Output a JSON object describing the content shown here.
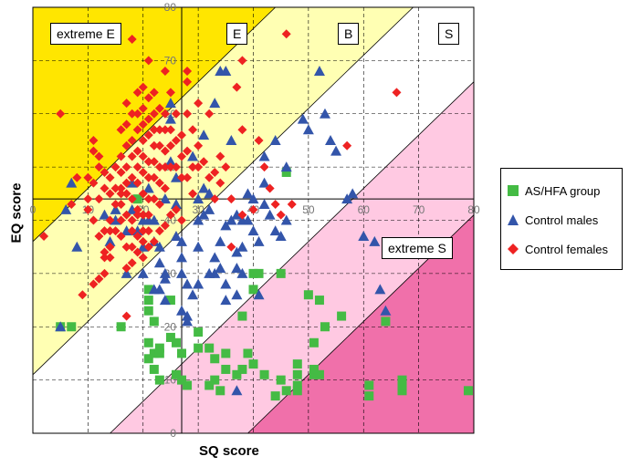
{
  "chart_data": {
    "type": "scatter",
    "xlabel": "SQ score",
    "ylabel": "EQ score",
    "xlim": [
      0,
      80
    ],
    "ylim": [
      0,
      80
    ],
    "x_ticks": [
      "0",
      "10",
      "20",
      "30",
      "40",
      "50",
      "60",
      "70",
      "80"
    ],
    "y_ticks": [
      "0",
      "10",
      "20",
      "30",
      "40",
      "50",
      "60",
      "70",
      "80"
    ],
    "grid": true,
    "legend_position": "right",
    "regions": [
      {
        "label": "extreme E",
        "color": "#ffe600"
      },
      {
        "label": "E",
        "color": "#ffffb3"
      },
      {
        "label": "B",
        "color": "#ffffff"
      },
      {
        "label": "S",
        "color": "#ffc9e2"
      },
      {
        "label": "extreme S",
        "color": "#f070aa"
      }
    ],
    "series": [
      {
        "name": "AS/HFA group",
        "marker": "square",
        "color": "#44bb44",
        "points": [
          [
            5,
            20
          ],
          [
            7,
            20
          ],
          [
            16,
            20
          ],
          [
            19,
            44
          ],
          [
            21,
            27
          ],
          [
            21,
            25
          ],
          [
            21,
            23
          ],
          [
            22,
            21
          ],
          [
            21,
            17
          ],
          [
            22,
            15
          ],
          [
            23,
            16
          ],
          [
            21,
            14
          ],
          [
            22,
            12
          ],
          [
            23,
            10
          ],
          [
            23,
            15
          ],
          [
            25,
            25
          ],
          [
            25,
            18
          ],
          [
            26,
            17
          ],
          [
            26,
            11
          ],
          [
            27,
            10
          ],
          [
            28,
            9
          ],
          [
            27,
            15
          ],
          [
            30,
            19
          ],
          [
            30,
            16
          ],
          [
            32,
            16
          ],
          [
            33,
            14
          ],
          [
            35,
            15
          ],
          [
            35,
            12
          ],
          [
            33,
            10
          ],
          [
            32,
            9
          ],
          [
            34,
            8
          ],
          [
            37,
            11
          ],
          [
            38,
            12
          ],
          [
            39,
            15
          ],
          [
            40,
            13
          ],
          [
            40,
            27
          ],
          [
            38,
            22
          ],
          [
            41,
            30
          ],
          [
            40,
            30
          ],
          [
            42,
            11
          ],
          [
            44,
            7
          ],
          [
            45,
            10
          ],
          [
            46,
            8
          ],
          [
            48,
            13
          ],
          [
            48,
            11
          ],
          [
            48,
            9
          ],
          [
            48,
            8
          ],
          [
            51,
            11
          ],
          [
            51,
            12
          ],
          [
            52,
            11
          ],
          [
            51,
            17
          ],
          [
            53,
            20
          ],
          [
            52,
            25
          ],
          [
            50,
            26
          ],
          [
            64,
            21
          ],
          [
            56,
            22
          ],
          [
            61,
            7
          ],
          [
            61,
            9
          ],
          [
            67,
            8
          ],
          [
            79,
            8
          ],
          [
            67,
            10
          ],
          [
            67,
            9
          ],
          [
            46,
            49
          ],
          [
            45,
            30
          ]
        ]
      },
      {
        "name": "Control males",
        "marker": "triangle",
        "color": "#3355aa",
        "points": [
          [
            5,
            20
          ],
          [
            6,
            42
          ],
          [
            7,
            47
          ],
          [
            8,
            35
          ],
          [
            13,
            41
          ],
          [
            14,
            36
          ],
          [
            15,
            40
          ],
          [
            17,
            38
          ],
          [
            17,
            30
          ],
          [
            18,
            47
          ],
          [
            19,
            38
          ],
          [
            20,
            35
          ],
          [
            20,
            40
          ],
          [
            21,
            40
          ],
          [
            20,
            30
          ],
          [
            22,
            40
          ],
          [
            22,
            36
          ],
          [
            23,
            32
          ],
          [
            23,
            27
          ],
          [
            24,
            30
          ],
          [
            24,
            29
          ],
          [
            24,
            25
          ],
          [
            25,
            62
          ],
          [
            25,
            59
          ],
          [
            25,
            51
          ],
          [
            26,
            43
          ],
          [
            27,
            36
          ],
          [
            27,
            33
          ],
          [
            27,
            30
          ],
          [
            28,
            28
          ],
          [
            28,
            22
          ],
          [
            29,
            26
          ],
          [
            30,
            35
          ],
          [
            30,
            40
          ],
          [
            30,
            44
          ],
          [
            31,
            41
          ],
          [
            31,
            46
          ],
          [
            32,
            45
          ],
          [
            32,
            42
          ],
          [
            33,
            33
          ],
          [
            33,
            30
          ],
          [
            34,
            36
          ],
          [
            35,
            39
          ],
          [
            35,
            28
          ],
          [
            35,
            25
          ],
          [
            36,
            40
          ],
          [
            37,
            41
          ],
          [
            37,
            34
          ],
          [
            37,
            31
          ],
          [
            37,
            26
          ],
          [
            38,
            40
          ],
          [
            38,
            35
          ],
          [
            38,
            30
          ],
          [
            39,
            45
          ],
          [
            39,
            40
          ],
          [
            40,
            38
          ],
          [
            40,
            44
          ],
          [
            41,
            36
          ],
          [
            41,
            26
          ],
          [
            42,
            43
          ],
          [
            42,
            47
          ],
          [
            43,
            41
          ],
          [
            44,
            38
          ],
          [
            45,
            37
          ],
          [
            46,
            40
          ],
          [
            42,
            52
          ],
          [
            44,
            55
          ],
          [
            46,
            50
          ],
          [
            49,
            59
          ],
          [
            50,
            57
          ],
          [
            52,
            68
          ],
          [
            53,
            60
          ],
          [
            54,
            55
          ],
          [
            55,
            53
          ],
          [
            57,
            44
          ],
          [
            58,
            45
          ],
          [
            60,
            37
          ],
          [
            63,
            27
          ],
          [
            64,
            23
          ],
          [
            62,
            36
          ],
          [
            37,
            8
          ],
          [
            34,
            31
          ],
          [
            30,
            28
          ],
          [
            28,
            21
          ],
          [
            27,
            23
          ],
          [
            23,
            35
          ],
          [
            24,
            44
          ],
          [
            26,
            48
          ],
          [
            29,
            52
          ],
          [
            31,
            56
          ],
          [
            33,
            62
          ],
          [
            34,
            68
          ],
          [
            35,
            68
          ],
          [
            36,
            55
          ],
          [
            32,
            30
          ],
          [
            26,
            37
          ],
          [
            15,
            42
          ],
          [
            18,
            42
          ],
          [
            21,
            46
          ],
          [
            22,
            27
          ]
        ]
      },
      {
        "name": "Control females",
        "marker": "diamond",
        "color": "#ee2222",
        "points": [
          [
            2,
            37
          ],
          [
            5,
            60
          ],
          [
            7,
            43
          ],
          [
            8,
            48
          ],
          [
            10,
            44
          ],
          [
            10,
            48
          ],
          [
            11,
            47
          ],
          [
            11,
            55
          ],
          [
            11,
            53
          ],
          [
            11,
            40
          ],
          [
            12,
            52
          ],
          [
            12,
            50
          ],
          [
            12,
            37
          ],
          [
            13,
            34
          ],
          [
            13,
            33
          ],
          [
            13,
            38
          ],
          [
            13,
            49
          ],
          [
            13,
            30
          ],
          [
            14,
            48
          ],
          [
            14,
            45
          ],
          [
            14,
            40
          ],
          [
            14,
            38
          ],
          [
            14,
            35
          ],
          [
            14,
            33
          ],
          [
            15,
            50
          ],
          [
            15,
            46
          ],
          [
            15,
            38
          ],
          [
            16,
            57
          ],
          [
            16,
            52
          ],
          [
            16,
            49
          ],
          [
            16,
            46
          ],
          [
            16,
            43
          ],
          [
            16,
            40
          ],
          [
            16,
            37
          ],
          [
            17,
            62
          ],
          [
            17,
            58
          ],
          [
            17,
            54
          ],
          [
            17,
            50
          ],
          [
            17,
            45
          ],
          [
            17,
            41
          ],
          [
            17,
            35
          ],
          [
            17,
            31
          ],
          [
            18,
            74
          ],
          [
            18,
            60
          ],
          [
            18,
            55
          ],
          [
            18,
            52
          ],
          [
            18,
            48
          ],
          [
            18,
            44
          ],
          [
            18,
            40
          ],
          [
            18,
            38
          ],
          [
            18,
            32
          ],
          [
            19,
            64
          ],
          [
            19,
            60
          ],
          [
            19,
            57
          ],
          [
            19,
            53
          ],
          [
            19,
            50
          ],
          [
            19,
            47
          ],
          [
            19,
            42
          ],
          [
            19,
            37
          ],
          [
            20,
            65
          ],
          [
            20,
            61
          ],
          [
            20,
            58
          ],
          [
            20,
            55
          ],
          [
            20,
            52
          ],
          [
            20,
            49
          ],
          [
            20,
            45
          ],
          [
            20,
            41
          ],
          [
            20,
            38
          ],
          [
            21,
            70
          ],
          [
            21,
            63
          ],
          [
            21,
            59
          ],
          [
            21,
            56
          ],
          [
            21,
            51
          ],
          [
            21,
            48
          ],
          [
            21,
            44
          ],
          [
            21,
            41
          ],
          [
            22,
            64
          ],
          [
            22,
            60
          ],
          [
            22,
            57
          ],
          [
            22,
            54
          ],
          [
            22,
            51
          ],
          [
            22,
            48
          ],
          [
            22,
            44
          ],
          [
            23,
            61
          ],
          [
            23,
            57
          ],
          [
            23,
            54
          ],
          [
            23,
            50
          ],
          [
            23,
            47
          ],
          [
            23,
            43
          ],
          [
            24,
            68
          ],
          [
            24,
            60
          ],
          [
            24,
            57
          ],
          [
            24,
            53
          ],
          [
            24,
            50
          ],
          [
            24,
            46
          ],
          [
            25,
            64
          ],
          [
            25,
            57
          ],
          [
            25,
            54
          ],
          [
            25,
            50
          ],
          [
            26,
            60
          ],
          [
            26,
            55
          ],
          [
            26,
            50
          ],
          [
            27,
            56
          ],
          [
            27,
            52
          ],
          [
            27,
            48
          ],
          [
            28,
            68
          ],
          [
            28,
            60
          ],
          [
            28,
            53
          ],
          [
            28,
            48
          ],
          [
            29,
            57
          ],
          [
            29,
            50
          ],
          [
            30,
            62
          ],
          [
            30,
            54
          ],
          [
            30,
            50
          ],
          [
            31,
            51
          ],
          [
            32,
            48
          ],
          [
            33,
            49
          ],
          [
            33,
            44
          ],
          [
            34,
            52
          ],
          [
            34,
            47
          ],
          [
            35,
            50
          ],
          [
            36,
            44
          ],
          [
            37,
            65
          ],
          [
            38,
            57
          ],
          [
            40,
            42
          ],
          [
            42,
            50
          ],
          [
            43,
            46
          ],
          [
            44,
            43
          ],
          [
            45,
            41
          ],
          [
            46,
            75
          ],
          [
            47,
            43
          ],
          [
            10,
            42
          ],
          [
            12,
            44
          ],
          [
            13,
            46
          ],
          [
            15,
            43
          ],
          [
            16,
            45
          ],
          [
            17,
            47
          ],
          [
            18,
            35
          ],
          [
            19,
            34
          ],
          [
            20,
            33
          ],
          [
            21,
            35
          ],
          [
            22,
            36
          ],
          [
            23,
            38
          ],
          [
            24,
            39
          ],
          [
            25,
            41
          ],
          [
            26,
            42
          ],
          [
            27,
            40
          ],
          [
            12,
            29
          ],
          [
            11,
            28
          ],
          [
            9,
            26
          ],
          [
            17,
            22
          ],
          [
            28,
            66
          ],
          [
            29,
            45
          ],
          [
            32,
            60
          ],
          [
            38,
            70
          ],
          [
            38,
            41
          ],
          [
            41,
            55
          ],
          [
            36,
            35
          ],
          [
            57,
            54
          ],
          [
            66,
            64
          ],
          [
            19,
            41
          ],
          [
            20,
            36
          ],
          [
            21,
            38
          ]
        ]
      }
    ]
  }
}
